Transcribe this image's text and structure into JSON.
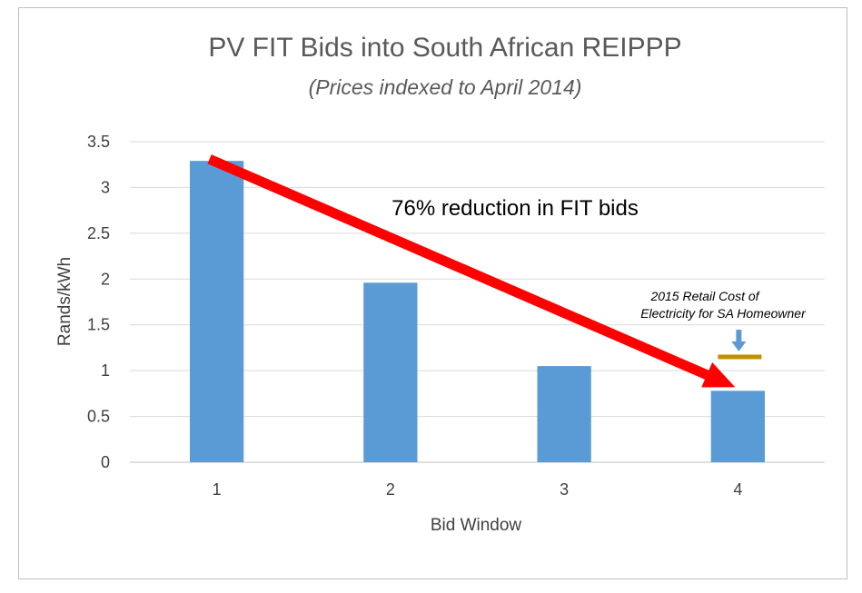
{
  "chart_data": {
    "type": "bar",
    "title": "PV FIT Bids into South African REIPPP",
    "subtitle": "(Prices indexed to April 2014)",
    "xlabel": "Bid Window",
    "ylabel": "Rands/kWh",
    "categories": [
      "1",
      "2",
      "3",
      "4"
    ],
    "values": [
      3.29,
      1.96,
      1.05,
      0.78
    ],
    "ylim": [
      0,
      3.5
    ],
    "yticks": [
      "0",
      "0.5",
      "1",
      "1.5",
      "2",
      "2.5",
      "3",
      "3.5"
    ],
    "grid": true,
    "bar_color": "#5b9bd5",
    "annotations": {
      "arrow_text": "76% reduction in FIT bids",
      "arrow_color": "#ff0000",
      "retail_note_line1": "2015 Retail Cost of",
      "retail_note_line2": "Electricity for SA Homeowner",
      "retail_value": 1.15,
      "retail_color": "#bf9000",
      "small_arrow_color": "#5b9bd5"
    }
  }
}
